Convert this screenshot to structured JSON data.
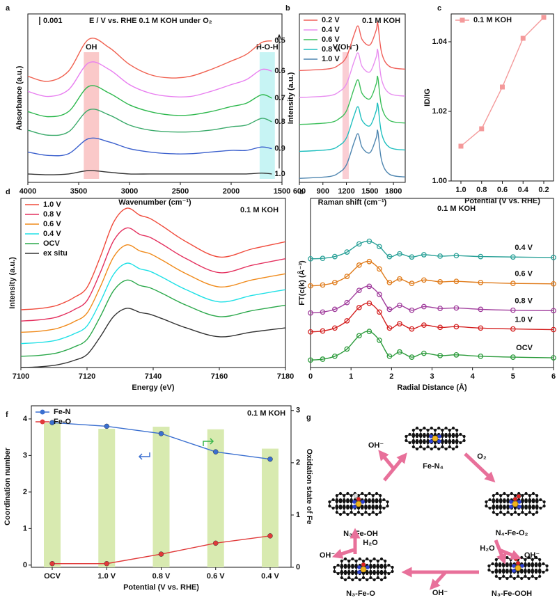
{
  "chart_data": [
    {
      "panel": "a",
      "type": "line",
      "smooth": true,
      "annotations": [
        "0.001",
        "E / V vs. RHE  0.1 M KOH  under O₂"
      ],
      "xlabel": "Wavenumber (cm⁻¹)",
      "ylabel": "Absorbance (a.u.)",
      "xlim": [
        4000,
        1500
      ],
      "xticks": [
        4000,
        3500,
        3000,
        2500,
        2000,
        1500
      ],
      "ylim": [
        0,
        10
      ],
      "legend": "end",
      "bands": [
        {
          "label": "OH",
          "range": [
            3450,
            3300
          ],
          "color": "#f9c0c0"
        },
        {
          "label": "H-O-H",
          "range": [
            1720,
            1570
          ],
          "color": "#bdf2f2"
        }
      ],
      "x": [
        4000,
        3800,
        3600,
        3400,
        3200,
        3000,
        2800,
        2600,
        2400,
        2200,
        2000,
        1850,
        1700,
        1600
      ],
      "series": [
        {
          "name": "0.5",
          "color": "#f0604f",
          "values": [
            6.3,
            6.0,
            6.6,
            8.5,
            8.0,
            7.0,
            6.4,
            6.2,
            6.3,
            6.7,
            7.2,
            7.6,
            8.3,
            8.4
          ]
        },
        {
          "name": "0.6",
          "color": "#e87ef0",
          "values": [
            5.4,
            5.1,
            5.5,
            7.1,
            6.7,
            5.8,
            5.3,
            5.1,
            5.1,
            5.4,
            5.8,
            6.1,
            6.7,
            6.6
          ]
        },
        {
          "name": "0.7",
          "color": "#2db84d",
          "values": [
            4.2,
            3.9,
            4.2,
            5.7,
            5.3,
            4.6,
            4.2,
            4.0,
            4.0,
            4.2,
            4.5,
            4.7,
            5.2,
            5.0
          ]
        },
        {
          "name": "0.8",
          "color": "#3aaa6a",
          "values": [
            3.1,
            2.8,
            3.0,
            4.3,
            4.0,
            3.4,
            3.1,
            3.0,
            3.0,
            3.1,
            3.3,
            3.4,
            3.8,
            3.6
          ]
        },
        {
          "name": "0.9",
          "color": "#3a5fcd",
          "values": [
            1.8,
            1.6,
            1.7,
            2.6,
            2.4,
            2.0,
            1.8,
            1.7,
            1.7,
            1.8,
            1.9,
            1.9,
            2.1,
            2.0
          ]
        },
        {
          "name": "1.0",
          "color": "#333333",
          "values": [
            0.5,
            0.45,
            0.5,
            0.7,
            0.6,
            0.5,
            0.5,
            0.5,
            0.5,
            0.5,
            0.5,
            0.5,
            0.55,
            0.5
          ]
        }
      ]
    },
    {
      "panel": "b",
      "type": "line",
      "smooth": true,
      "annotations": [
        "0.1 M KOH"
      ],
      "xlabel": "Raman shift (cm⁻¹)",
      "ylabel": "Intensity (a.u.)",
      "xlim": [
        600,
        1950
      ],
      "xticks": [
        600,
        900,
        1200,
        1500,
        1800
      ],
      "ylim": [
        0,
        12.5
      ],
      "legend": "upper left",
      "bands": [
        {
          "label": "V(OH⁻)",
          "range": [
            1150,
            1230
          ],
          "color": "#f9c6cc"
        }
      ],
      "x": [
        600,
        800,
        1000,
        1100,
        1200,
        1300,
        1350,
        1400,
        1500,
        1580,
        1600,
        1650,
        1750,
        1950
      ],
      "series": [
        {
          "name": "0.2 V",
          "color": "#f0605a",
          "values": [
            8.3,
            8.35,
            8.45,
            8.7,
            9.3,
            11.0,
            11.6,
            10.6,
            10.2,
            11.3,
            11.8,
            9.6,
            8.6,
            8.4
          ]
        },
        {
          "name": "0.4 V",
          "color": "#e88ef0",
          "values": [
            6.3,
            6.35,
            6.45,
            6.7,
            7.3,
            9.0,
            9.6,
            8.6,
            8.2,
            9.3,
            9.8,
            7.6,
            6.6,
            6.4
          ]
        },
        {
          "name": "0.6 V",
          "color": "#3cbf5a",
          "values": [
            4.3,
            4.35,
            4.45,
            4.7,
            5.3,
            7.0,
            7.6,
            6.6,
            6.2,
            7.3,
            7.8,
            5.6,
            4.6,
            4.4
          ]
        },
        {
          "name": "0.8 V",
          "color": "#1fbfbf",
          "values": [
            2.3,
            2.35,
            2.45,
            2.7,
            3.3,
            5.0,
            5.6,
            4.6,
            4.2,
            5.3,
            5.8,
            3.6,
            2.6,
            2.4
          ]
        },
        {
          "name": "1.0 V",
          "color": "#4f86b0",
          "values": [
            0.3,
            0.35,
            0.45,
            0.7,
            1.3,
            3.0,
            3.6,
            2.6,
            2.2,
            3.3,
            3.8,
            1.6,
            0.6,
            0.4
          ]
        }
      ]
    },
    {
      "panel": "c",
      "type": "line",
      "xlabel": "Potential (V vs. RHE)",
      "ylabel": "ID/IG",
      "categories": [
        "1.0",
        "0.8",
        "0.6",
        "0.4",
        "0.2"
      ],
      "ylim": [
        1.0,
        1.048
      ],
      "yticks": [
        {
          "value": 1.0,
          "label": "1.00"
        },
        1.02,
        1.04
      ],
      "legend": "upper left",
      "marker": "square",
      "series": [
        {
          "name": "0.1 M KOH",
          "color": "#f4999a",
          "values": [
            1.01,
            1.015,
            1.027,
            1.041,
            1.047
          ]
        }
      ]
    },
    {
      "panel": "d",
      "type": "line",
      "smooth": true,
      "annotations": [
        "0.1 M KOH"
      ],
      "xlabel": "Energy (eV)",
      "ylabel": "Intensity (a.u.)",
      "xlim": [
        7100,
        7180
      ],
      "xticks": [
        7100,
        7120,
        7140,
        7160,
        7180
      ],
      "ylim": [
        0,
        12
      ],
      "legend": "upper left",
      "x": [
        7100,
        7105,
        7110,
        7113,
        7116,
        7120,
        7124,
        7128,
        7132,
        7136,
        7139,
        7143,
        7150,
        7160,
        7170,
        7180
      ],
      "series": [
        {
          "name": "1.0 V",
          "color": "#f04b3c",
          "values": [
            4.1,
            4.17,
            4.35,
            4.6,
            4.96,
            5.68,
            7.84,
            10.29,
            11.3,
            10.8,
            10.58,
            10.0,
            8.92,
            7.84,
            8.42,
            8.92
          ]
        },
        {
          "name": "0.8 V",
          "color": "#e4305e",
          "values": [
            3.3,
            3.37,
            3.53,
            3.76,
            4.09,
            4.75,
            6.73,
            8.98,
            9.9,
            9.44,
            9.24,
            8.71,
            7.72,
            6.73,
            7.26,
            7.72
          ]
        },
        {
          "name": "0.6 V",
          "color": "#f08a1a",
          "values": [
            2.5,
            2.56,
            2.72,
            2.93,
            3.24,
            3.86,
            5.72,
            7.83,
            8.7,
            8.27,
            8.08,
            7.58,
            6.65,
            5.72,
            6.22,
            6.65
          ]
        },
        {
          "name": "0.4 V",
          "color": "#1ee0e6",
          "values": [
            1.7,
            1.76,
            1.9,
            2.1,
            2.38,
            2.95,
            4.66,
            6.6,
            7.4,
            7.0,
            6.83,
            6.37,
            5.52,
            4.66,
            5.12,
            5.52
          ]
        },
        {
          "name": "OCV",
          "color": "#2aa84a",
          "values": [
            0.8,
            0.85,
            0.99,
            1.18,
            1.45,
            1.99,
            3.61,
            5.44,
            6.2,
            5.82,
            5.66,
            5.23,
            4.42,
            3.61,
            4.04,
            4.42
          ]
        },
        {
          "name": "ex situ",
          "color": "#333333",
          "values": [
            0,
            0.04,
            0.15,
            0.29,
            0.5,
            0.92,
            2.18,
            3.61,
            4.2,
            3.91,
            3.78,
            3.44,
            2.81,
            2.18,
            2.52,
            2.81
          ]
        }
      ]
    },
    {
      "panel": "e",
      "type": "line",
      "smooth": true,
      "annotations": [
        "0.1 M KOH"
      ],
      "xlabel": "Radial Distance (Å)",
      "ylabel": "FT(c(k) (Å⁻³)",
      "xlim": [
        0,
        6
      ],
      "xticks": [
        0,
        1,
        2,
        3,
        4,
        5,
        6
      ],
      "ylim": [
        0,
        7.5
      ],
      "legend": "above-end",
      "marker": "circle-open",
      "x": [
        0,
        0.3,
        0.6,
        0.9,
        1.2,
        1.45,
        1.7,
        1.95,
        2.2,
        2.5,
        2.8,
        3.2,
        3.6,
        4.2,
        5,
        6
      ],
      "series": [
        {
          "name": "0.4 V",
          "color": "#2aa198",
          "values": [
            4.82,
            4.84,
            4.92,
            5.12,
            5.48,
            5.6,
            5.36,
            4.92,
            5.04,
            4.9,
            5.0,
            4.94,
            4.96,
            4.92,
            4.9,
            4.88
          ]
        },
        {
          "name": "0.6 V",
          "color": "#e07b1a",
          "values": [
            3.62,
            3.66,
            3.77,
            4.04,
            4.54,
            4.7,
            4.37,
            3.77,
            3.93,
            3.73,
            3.88,
            3.8,
            3.82,
            3.77,
            3.73,
            3.71
          ]
        },
        {
          "name": "0.8 V",
          "color": "#a03c9c",
          "values": [
            2.42,
            2.46,
            2.58,
            2.88,
            3.42,
            3.6,
            3.24,
            2.58,
            2.76,
            2.54,
            2.7,
            2.62,
            2.64,
            2.58,
            2.54,
            2.52
          ]
        },
        {
          "name": "1.0 V",
          "color": "#d42020",
          "values": [
            1.58,
            1.62,
            1.75,
            2.07,
            2.66,
            2.85,
            2.46,
            1.75,
            1.94,
            1.71,
            1.88,
            1.78,
            1.81,
            1.75,
            1.71,
            1.68
          ]
        },
        {
          "name": "OCV",
          "color": "#2a9a3a",
          "values": [
            0.33,
            0.37,
            0.5,
            0.82,
            1.41,
            1.6,
            1.21,
            0.5,
            0.69,
            0.46,
            0.63,
            0.53,
            0.56,
            0.5,
            0.46,
            0.43
          ]
        }
      ]
    },
    {
      "panel": "f",
      "type": "combo",
      "annotations": [
        "0.1 M KOH"
      ],
      "xlabel": "Potential (V vs. RHE)",
      "ylabel": "Coordination number",
      "y2label": "Oxidation state of Fe",
      "categories": [
        "OCV",
        "1.0 V",
        "0.8 V",
        "0.6 V",
        "0.4 V"
      ],
      "ylim": [
        -0.06,
        4.36
      ],
      "yticks": [
        0,
        1,
        2,
        3,
        4
      ],
      "y2lim": [
        0,
        3.09
      ],
      "y2ticks": [
        0,
        1,
        2,
        3
      ],
      "legend": "upper left",
      "marker": "circle",
      "series": [
        {
          "style": "bar",
          "axis": "y2",
          "color": "#d8eab0",
          "values": [
            2.76,
            2.65,
            2.69,
            2.64,
            2.27
          ]
        },
        {
          "name": "Fe-N",
          "color": "#3a6fd0",
          "values": [
            3.9,
            3.8,
            3.6,
            3.1,
            2.9
          ]
        },
        {
          "name": "Fe-O",
          "color": "#e03a3a",
          "values": [
            0.04,
            0.04,
            0.3,
            0.6,
            0.8
          ]
        }
      ]
    }
  ],
  "diagram": {
    "panel": "g",
    "nodes": [
      {
        "label": "Fe-N₄"
      },
      {
        "label": "N₄-Fe-O₂"
      },
      {
        "label": "N₃-Fe-OOH"
      },
      {
        "label": "N₃-Fe-O"
      },
      {
        "label": "N₃-Fe-OH"
      }
    ],
    "arrow_labels": [
      {
        "text": "O₂",
        "color": "#e0302a"
      },
      {
        "text": "H₂O",
        "color": "#39b54a"
      },
      {
        "text": "OH⁻",
        "color": "#f07f3c"
      },
      {
        "text": "OH⁻",
        "color": "#f07f3c"
      },
      {
        "text": "H₂O",
        "color": "#39b54a"
      },
      {
        "text": "OH⁻",
        "color": "#f07f3c"
      },
      {
        "text": "OH⁻",
        "color": "#f07f3c"
      }
    ]
  }
}
